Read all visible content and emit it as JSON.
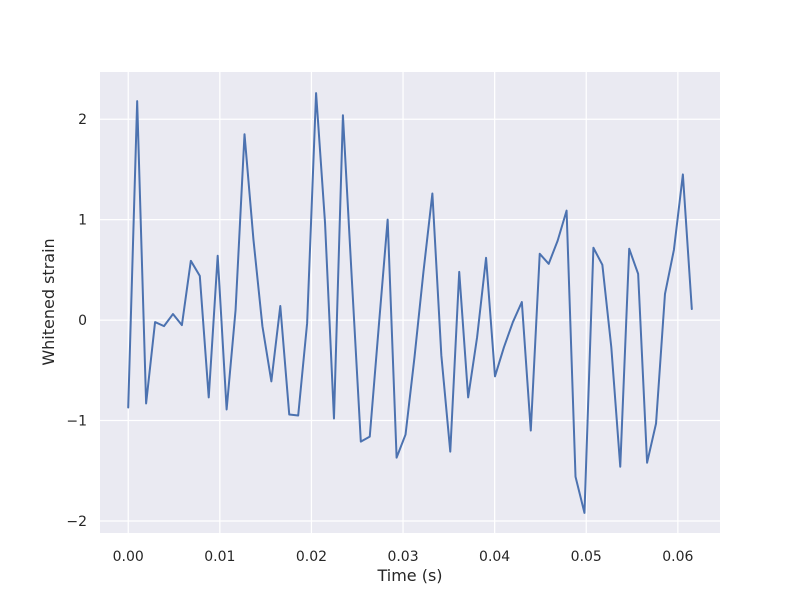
{
  "chart_data": {
    "type": "line",
    "xlabel": "Time (s)",
    "ylabel": "Whitened strain",
    "xlim": [
      -0.00308,
      0.0646
    ],
    "ylim": [
      -2.12,
      2.47
    ],
    "grid": true,
    "xticks": [
      0.0,
      0.01,
      0.02,
      0.03,
      0.04,
      0.05,
      0.06
    ],
    "xtick_labels": [
      "0.00",
      "0.01",
      "0.02",
      "0.03",
      "0.04",
      "0.05",
      "0.06"
    ],
    "yticks": [
      -2,
      -1,
      0,
      1,
      2
    ],
    "ytick_labels": [
      "−2",
      "−1",
      "0",
      "1",
      "2"
    ],
    "series": [
      {
        "color": "#4c72b0",
        "x": [
          0.0,
          0.000977,
          0.001953,
          0.00293,
          0.003906,
          0.004883,
          0.005859,
          0.006836,
          0.007813,
          0.008789,
          0.009766,
          0.010742,
          0.011719,
          0.012695,
          0.013672,
          0.014648,
          0.015625,
          0.016602,
          0.017578,
          0.018555,
          0.019531,
          0.020508,
          0.021484,
          0.022461,
          0.023438,
          0.024414,
          0.025391,
          0.026367,
          0.027344,
          0.02832,
          0.029297,
          0.030273,
          0.03125,
          0.032227,
          0.033203,
          0.03418,
          0.035156,
          0.036133,
          0.037109,
          0.038086,
          0.039063,
          0.040039,
          0.041016,
          0.041992,
          0.042969,
          0.043945,
          0.044922,
          0.045898,
          0.046875,
          0.047852,
          0.048828,
          0.049805,
          0.050781,
          0.051758,
          0.052734,
          0.053711,
          0.054688,
          0.055664,
          0.056641,
          0.057617,
          0.058594,
          0.05957,
          0.060547,
          0.061523
        ],
        "y": [
          -0.87,
          2.18,
          -0.83,
          -0.02,
          -0.06,
          0.06,
          -0.05,
          0.59,
          0.44,
          -0.77,
          0.64,
          -0.89,
          0.1,
          1.85,
          0.8,
          -0.06,
          -0.61,
          0.14,
          -0.94,
          -0.95,
          -0.03,
          2.26,
          0.97,
          -0.98,
          2.04,
          0.4,
          -1.21,
          -1.16,
          -0.07,
          1.0,
          -1.37,
          -1.14,
          -0.37,
          0.48,
          1.26,
          -0.35,
          -1.31,
          0.48,
          -0.77,
          -0.17,
          0.62,
          -0.56,
          -0.27,
          -0.02,
          0.18,
          -1.1,
          0.66,
          0.56,
          0.79,
          1.09,
          -1.56,
          -1.92,
          0.72,
          0.55,
          -0.27,
          -1.46,
          0.71,
          0.46,
          -1.42,
          -1.03,
          0.26,
          0.7,
          1.45,
          0.11
        ]
      }
    ]
  }
}
